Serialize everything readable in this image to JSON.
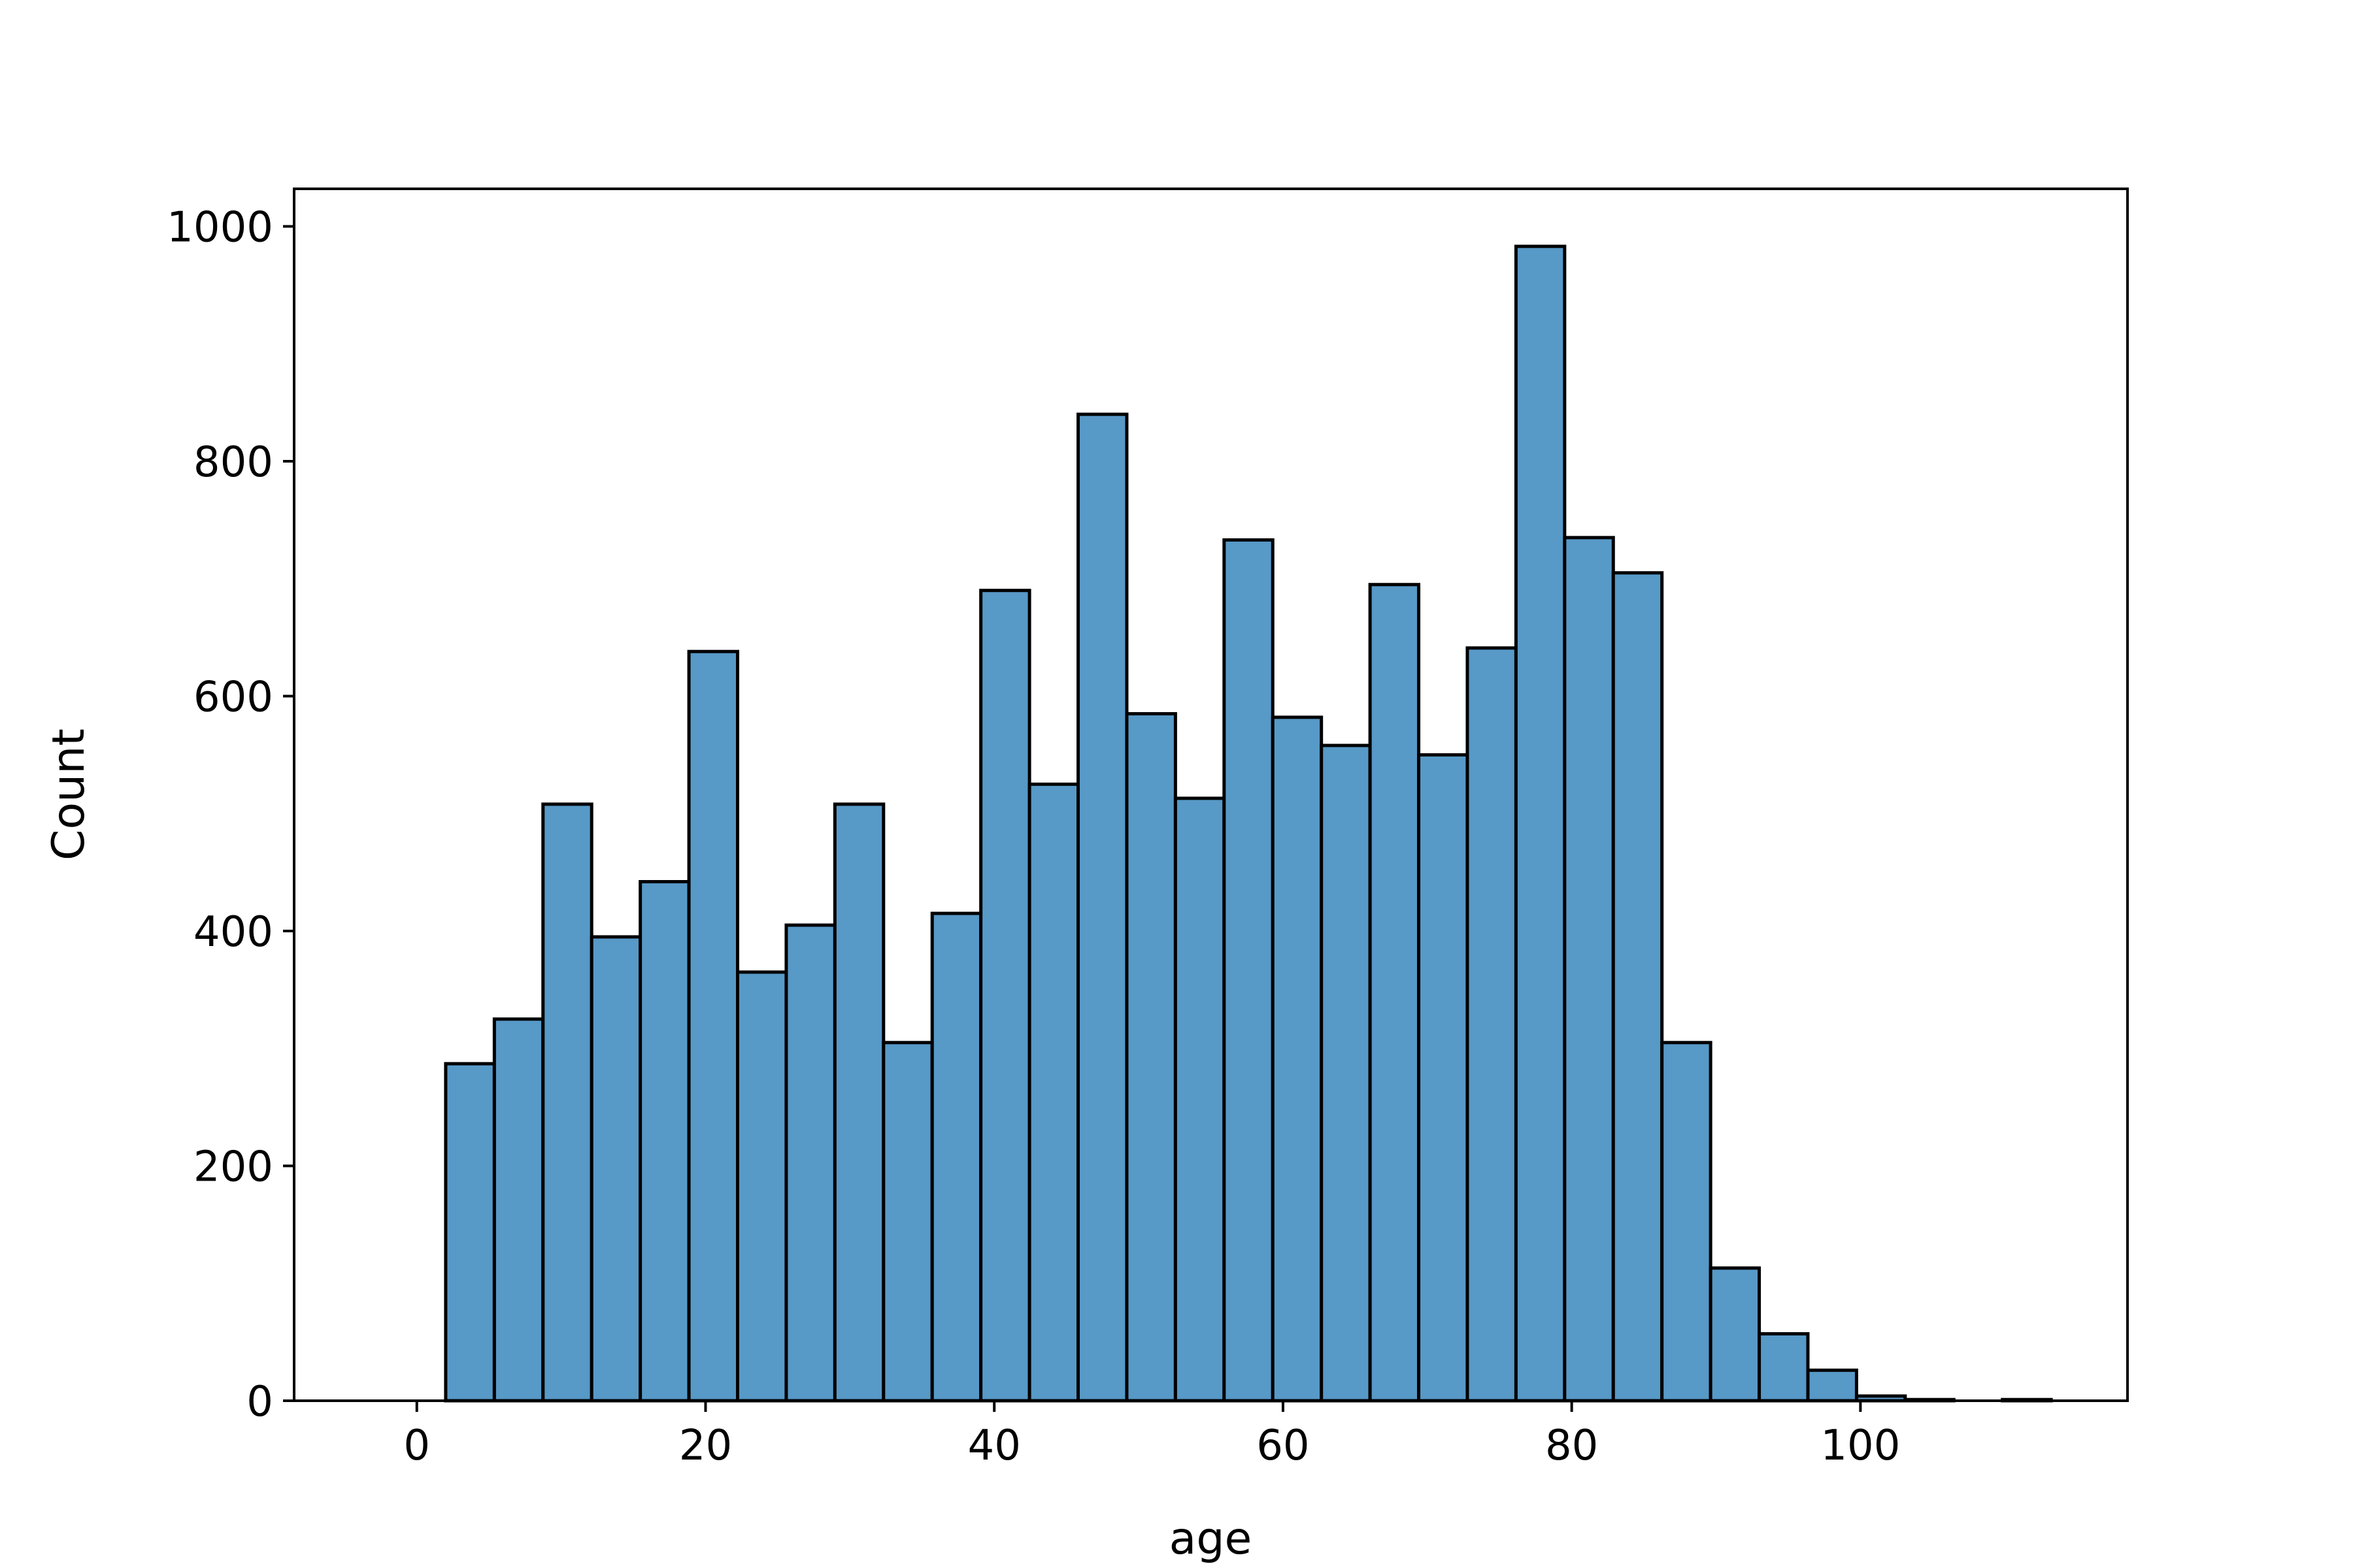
{
  "chart_data": {
    "type": "bar",
    "histogram": true,
    "xlabel": "age",
    "ylabel": "Count",
    "title": "",
    "xlim": [
      -8.5,
      118.5
    ],
    "ylim": [
      0,
      1032
    ],
    "xticks": [
      0,
      20,
      40,
      60,
      80,
      100
    ],
    "yticks": [
      0,
      200,
      400,
      600,
      800,
      1000
    ],
    "grid": false,
    "bar_color": "#5799c7",
    "edge_color": "#000000",
    "bins": [
      {
        "x0": 2.0,
        "x1": 5.37,
        "count": 287
      },
      {
        "x0": 5.37,
        "x1": 8.74,
        "count": 325
      },
      {
        "x0": 8.74,
        "x1": 12.11,
        "count": 508
      },
      {
        "x0": 12.11,
        "x1": 15.48,
        "count": 395
      },
      {
        "x0": 15.48,
        "x1": 18.85,
        "count": 442
      },
      {
        "x0": 18.85,
        "x1": 22.22,
        "count": 638
      },
      {
        "x0": 22.22,
        "x1": 25.59,
        "count": 365
      },
      {
        "x0": 25.59,
        "x1": 28.96,
        "count": 405
      },
      {
        "x0": 28.96,
        "x1": 32.33,
        "count": 508
      },
      {
        "x0": 32.33,
        "x1": 35.7,
        "count": 305
      },
      {
        "x0": 35.7,
        "x1": 39.07,
        "count": 415
      },
      {
        "x0": 39.07,
        "x1": 42.44,
        "count": 690
      },
      {
        "x0": 42.44,
        "x1": 45.81,
        "count": 525
      },
      {
        "x0": 45.81,
        "x1": 49.18,
        "count": 840
      },
      {
        "x0": 49.18,
        "x1": 52.55,
        "count": 585
      },
      {
        "x0": 52.55,
        "x1": 55.92,
        "count": 513
      },
      {
        "x0": 55.92,
        "x1": 59.29,
        "count": 733
      },
      {
        "x0": 59.29,
        "x1": 62.66,
        "count": 582
      },
      {
        "x0": 62.66,
        "x1": 66.03,
        "count": 558
      },
      {
        "x0": 66.03,
        "x1": 69.4,
        "count": 695
      },
      {
        "x0": 69.4,
        "x1": 72.77,
        "count": 550
      },
      {
        "x0": 72.77,
        "x1": 76.14,
        "count": 641
      },
      {
        "x0": 76.14,
        "x1": 79.51,
        "count": 983
      },
      {
        "x0": 79.51,
        "x1": 82.88,
        "count": 735
      },
      {
        "x0": 82.88,
        "x1": 86.25,
        "count": 705
      },
      {
        "x0": 86.25,
        "x1": 89.62,
        "count": 305
      },
      {
        "x0": 89.62,
        "x1": 92.99,
        "count": 113
      },
      {
        "x0": 92.99,
        "x1": 96.36,
        "count": 57
      },
      {
        "x0": 96.36,
        "x1": 99.73,
        "count": 26
      },
      {
        "x0": 99.73,
        "x1": 103.1,
        "count": 4
      },
      {
        "x0": 103.1,
        "x1": 106.47,
        "count": 1
      },
      {
        "x0": 106.47,
        "x1": 109.84,
        "count": 0
      },
      {
        "x0": 109.84,
        "x1": 113.21,
        "count": 1
      }
    ]
  }
}
